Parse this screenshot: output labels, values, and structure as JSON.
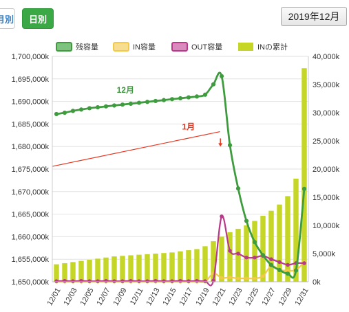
{
  "controls": {
    "monthly_label": "月別",
    "daily_label": "日別",
    "selected_month": "2019年12月"
  },
  "colors": {
    "remaining": "#3e9c3e",
    "in_capacity": "#f3c94a",
    "out_capacity": "#b8388a",
    "in_cumulative": "#c5d627",
    "prev_month_line": "#e8351f"
  },
  "chart_data": {
    "type": "bar",
    "title": "",
    "legend_position": "top",
    "grid": true,
    "categories": [
      "12/01",
      "12/02",
      "12/03",
      "12/04",
      "12/05",
      "12/06",
      "12/07",
      "12/08",
      "12/09",
      "12/10",
      "12/11",
      "12/12",
      "12/13",
      "12/14",
      "12/15",
      "12/16",
      "12/17",
      "12/18",
      "12/19",
      "12/20",
      "12/21",
      "12/22",
      "12/23",
      "12/24",
      "12/25",
      "12/26",
      "12/27",
      "12/28",
      "12/29",
      "12/30",
      "12/31"
    ],
    "x_tick_labels": [
      "12/01",
      "12/03",
      "12/05",
      "12/07",
      "12/09",
      "12/11",
      "12/13",
      "12/15",
      "12/17",
      "12/19",
      "12/21",
      "12/23",
      "12/25",
      "12/27",
      "12/29",
      "12/31"
    ],
    "y_left": {
      "min": 1650000,
      "max": 1700000,
      "step": 5000,
      "tick_labels": [
        "1,650,000k",
        "1,655,000k",
        "1,660,000k",
        "1,665,000k",
        "1,670,000k",
        "1,675,000k",
        "1,680,000k",
        "1,685,000k",
        "1,690,000k",
        "1,695,000k",
        "1,700,000k"
      ]
    },
    "y_right": {
      "min": 0,
      "max": 40000,
      "step": 5000,
      "tick_labels": [
        "0k",
        "5,000k",
        "10,000k",
        "15,000k",
        "20,000k",
        "25,000k",
        "30,000k",
        "35,000k",
        "40,000k"
      ]
    },
    "series": [
      {
        "name": "残容量",
        "type": "line",
        "axis": "left",
        "values": [
          1687200,
          1687500,
          1687900,
          1688200,
          1688500,
          1688700,
          1688900,
          1689100,
          1689300,
          1689500,
          1689700,
          1689900,
          1690100,
          1690300,
          1690500,
          1690700,
          1690900,
          1691100,
          1691500,
          1693800,
          1695600,
          1680300,
          1670700,
          1663500,
          1658800,
          1655900,
          1653700,
          1652600,
          1651800,
          1652500,
          1670600
        ]
      },
      {
        "name": "IN容量",
        "type": "line",
        "axis": "right",
        "values": [
          0,
          0,
          0,
          0,
          0,
          0,
          0,
          0,
          0,
          0,
          0,
          0,
          0,
          0,
          0,
          0,
          0,
          0,
          0,
          1500,
          700,
          800,
          600,
          600,
          600,
          1000,
          2800,
          2100,
          2000,
          2100,
          3500
        ]
      },
      {
        "name": "OUT容量",
        "type": "line",
        "axis": "right",
        "values": [
          100,
          150,
          100,
          150,
          100,
          100,
          150,
          100,
          100,
          150,
          100,
          100,
          150,
          100,
          100,
          150,
          100,
          150,
          100,
          200,
          11600,
          5500,
          5000,
          4300,
          4300,
          4600,
          4000,
          3500,
          3000,
          3300,
          3300
        ]
      },
      {
        "name": "INの累計",
        "type": "bar",
        "axis": "right",
        "values": [
          3100,
          3300,
          3500,
          3700,
          3900,
          4100,
          4300,
          4500,
          4600,
          4700,
          4800,
          4900,
          5000,
          5100,
          5200,
          5400,
          5600,
          5800,
          6300,
          7200,
          8000,
          8800,
          9400,
          10000,
          10800,
          11700,
          12600,
          13700,
          15200,
          18300,
          37900
        ]
      }
    ],
    "annotations": [
      {
        "text": "12月",
        "refers_to": "残容量"
      },
      {
        "text": "1月",
        "line_from": [
          0,
          1675600
        ],
        "line_to": [
          19.8,
          1683300
        ]
      }
    ]
  }
}
